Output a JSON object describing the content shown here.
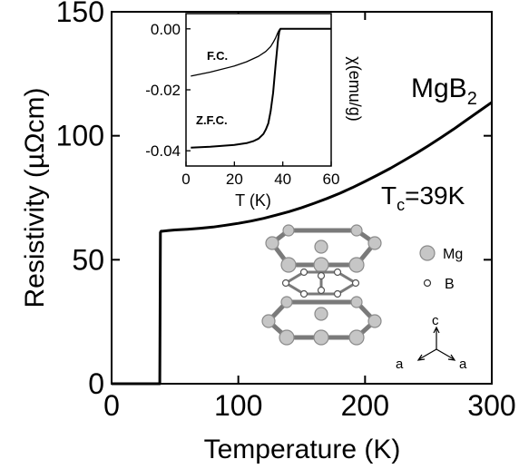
{
  "chart_data": [
    {
      "id": "main",
      "type": "line",
      "xlabel": "Temperature (K)",
      "ylabel": "Resistivity (µΩcm)",
      "xlim": [
        0,
        300
      ],
      "ylim": [
        0,
        150
      ],
      "xticks": [
        0,
        100,
        200,
        300
      ],
      "yticks": [
        0,
        50,
        100,
        150
      ],
      "grid": false,
      "annotations": {
        "compound_base": "MgB",
        "compound_sub": "2",
        "tc_base": "T",
        "tc_sub": "c",
        "tc_value": "=39K"
      },
      "series": [
        {
          "x": [
            0,
            10,
            20,
            30,
            35,
            37,
            38,
            38.5,
            39,
            40,
            45,
            50,
            60,
            70,
            80,
            90,
            100,
            110,
            120,
            130,
            140,
            150,
            160,
            170,
            180,
            190,
            200,
            210,
            220,
            230,
            240,
            250,
            260,
            270,
            280,
            290,
            300
          ],
          "y": [
            0,
            0,
            0,
            0,
            0,
            0,
            0,
            61,
            61.5,
            61.5,
            61.8,
            62,
            62.3,
            62.7,
            63.2,
            63.9,
            64.7,
            65.6,
            66.7,
            68,
            69.4,
            71,
            72.8,
            74.7,
            76.8,
            79.1,
            81.6,
            84.2,
            86.9,
            89.8,
            92.8,
            96,
            99.3,
            102.7,
            106.3,
            109.9,
            113.5
          ]
        }
      ]
    },
    {
      "id": "inset",
      "type": "line",
      "xlabel": "T (K)",
      "ylabel": "χ(emu/g)",
      "xlim": [
        0,
        60
      ],
      "ylim": [
        -0.045,
        0.005
      ],
      "xticks": [
        0,
        20,
        40,
        60
      ],
      "yticks": [
        0,
        -0.02,
        -0.04
      ],
      "ytick_labels": [
        "0.00",
        "-0.02",
        "-0.04"
      ],
      "series": [
        {
          "name": "F.C.",
          "x": [
            2,
            10,
            20,
            25,
            30,
            33,
            35,
            36,
            37,
            38,
            38.5,
            39,
            40,
            45,
            50,
            55,
            60
          ],
          "y": [
            -0.0155,
            -0.0142,
            -0.0122,
            -0.0108,
            -0.009,
            -0.0074,
            -0.0058,
            -0.0045,
            -0.003,
            -0.0012,
            -0.0004,
            0,
            0,
            0,
            0,
            0,
            0
          ]
        },
        {
          "name": "Z.F.C.",
          "x": [
            2,
            10,
            20,
            25,
            28,
            30,
            32,
            33,
            34,
            35,
            36,
            37,
            38,
            38.5,
            39,
            40,
            45,
            50,
            55,
            60
          ],
          "y": [
            -0.039,
            -0.0387,
            -0.0381,
            -0.0375,
            -0.0368,
            -0.036,
            -0.0345,
            -0.033,
            -0.031,
            -0.027,
            -0.021,
            -0.012,
            -0.004,
            -0.001,
            0,
            0,
            0,
            0,
            0,
            0
          ]
        }
      ]
    }
  ],
  "crystal_legend": {
    "mg_label": "Mg",
    "b_label": "B",
    "axis_c": "c",
    "axis_a_left": "a",
    "axis_a_right": "a"
  }
}
